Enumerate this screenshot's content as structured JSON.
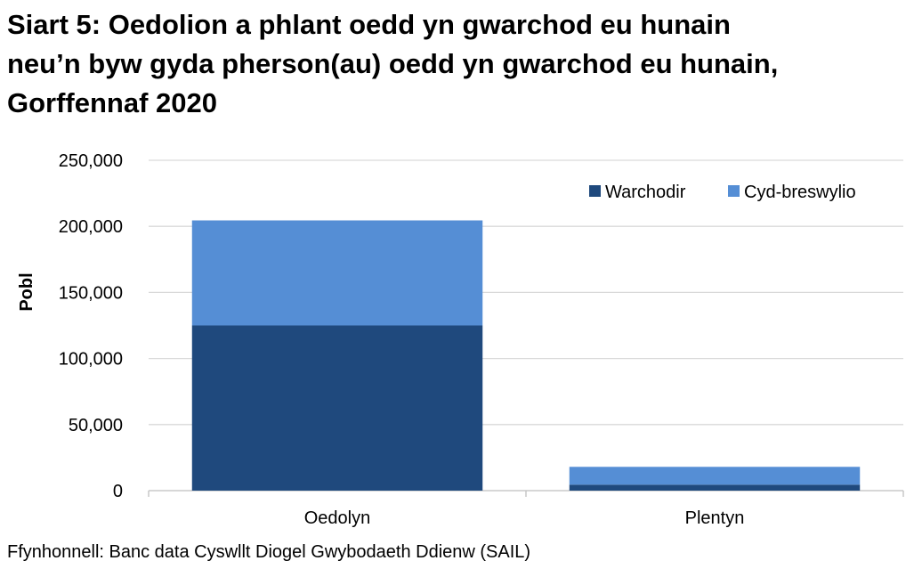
{
  "title_lines": [
    "Siart 5: Oedolion a phlant oedd yn gwarchod eu hunain",
    "neu’n byw gyda pherson(au) oedd yn gwarchod eu hunain,",
    "Gorffennaf 2020"
  ],
  "source": "Ffynhonnell: Banc data Cyswllt Diogel Gwybodaeth Ddienw (SAIL)",
  "colors": {
    "Warchodir": "#1f497d",
    "Cyd-breswylio": "#558ed5",
    "grid": "#d9d9d9",
    "axis": "#bfbfbf"
  },
  "chart_data": {
    "type": "bar",
    "stacked": true,
    "categories": [
      "Oedolyn",
      "Plentyn"
    ],
    "series": [
      {
        "name": "Warchodir",
        "values": [
          125000,
          4500
        ]
      },
      {
        "name": "Cyd-breswylio",
        "values": [
          79500,
          13500
        ]
      }
    ],
    "title": "Siart 5: Oedolion a phlant oedd yn gwarchod eu hunain neu’n byw gyda pherson(au) oedd yn gwarchod eu hunain, Gorffennaf 2020",
    "xlabel": "",
    "ylabel": "Pobl",
    "ylim": [
      0,
      250000
    ],
    "yticks": [
      0,
      50000,
      100000,
      150000,
      200000,
      250000
    ],
    "ytick_labels": [
      "0",
      "50,000",
      "100,000",
      "150,000",
      "200,000",
      "250,000"
    ],
    "grid": true,
    "legend_position": "top-right"
  }
}
